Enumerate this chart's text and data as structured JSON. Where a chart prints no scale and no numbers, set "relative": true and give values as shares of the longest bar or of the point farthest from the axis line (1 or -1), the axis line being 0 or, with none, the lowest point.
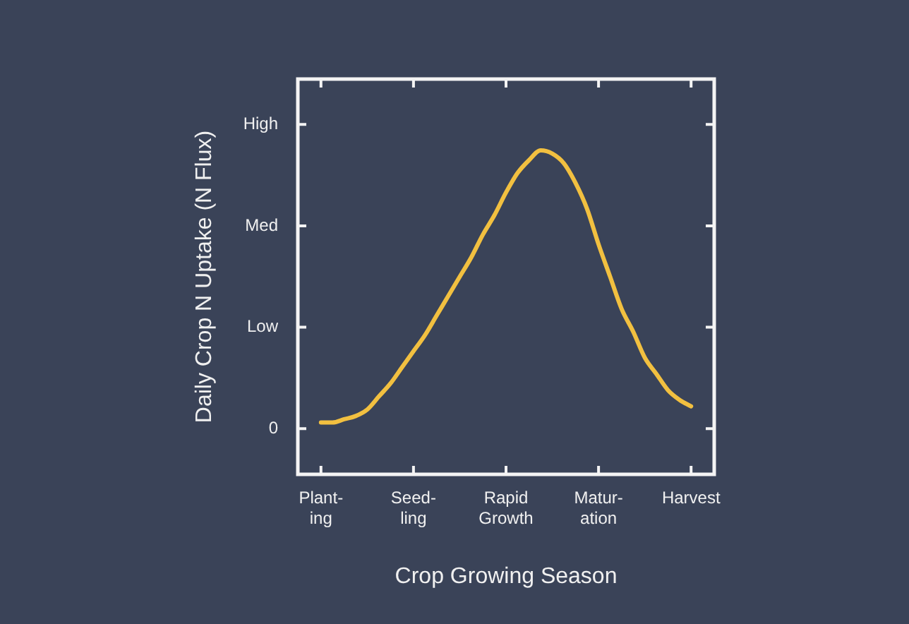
{
  "chart_data": {
    "type": "line",
    "xlabel": "Crop Growing Season",
    "ylabel": "Daily Crop N Uptake (N Flux)",
    "categories": [
      "Plant-\ning",
      null,
      null,
      null,
      null,
      null,
      null,
      null,
      "Seed-\nling",
      null,
      null,
      null,
      null,
      null,
      null,
      null,
      "Rapid\nGrowth",
      null,
      null,
      null,
      null,
      null,
      null,
      null,
      "Matur-\nation",
      null,
      null,
      null,
      null,
      null,
      null,
      null,
      "Harvest"
    ],
    "series": [
      {
        "color": "#f2c040",
        "values": [
          0.16,
          0.16,
          0.17,
          0.18,
          0.2,
          0.24,
          0.28,
          0.33,
          0.38,
          0.43,
          0.49,
          0.55,
          0.61,
          0.67,
          0.74,
          0.8,
          0.87,
          0.93,
          0.97,
          1,
          0.99,
          0.96,
          0.9,
          0.82,
          0.71,
          0.61,
          0.51,
          0.44,
          0.36,
          0.31,
          0.26,
          0.23,
          0.21
        ]
      }
    ],
    "relative": true,
    "annotations": [
      "0",
      "Low",
      "Med",
      "High"
    ],
    "grid": false,
    "legend": false,
    "marker": "none",
    "line_style": "solid"
  }
}
